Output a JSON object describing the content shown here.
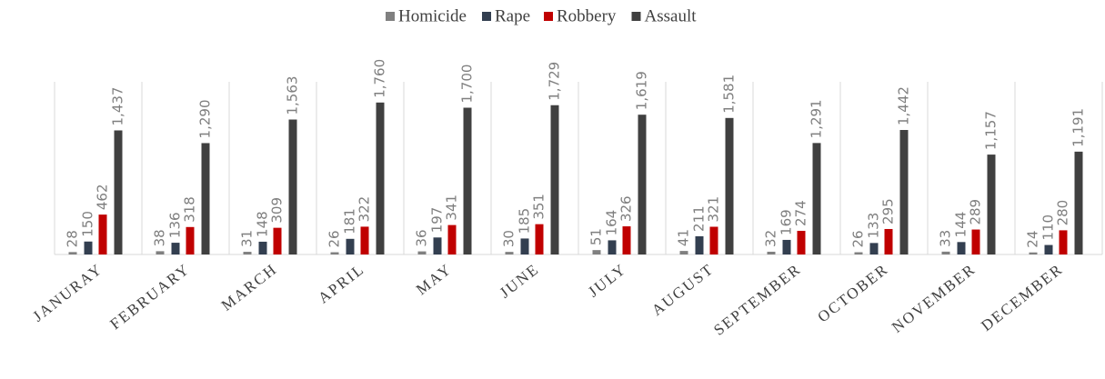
{
  "chart_data": {
    "type": "bar",
    "categories": [
      "JANURAY",
      "FEBRUARY",
      "MARCH",
      "APRIL",
      "MAY",
      "JUNE",
      "JULY",
      "AUGUST",
      "SEPTEMBER",
      "OCTOBER",
      "NOVEMBER",
      "DECEMBER"
    ],
    "series": [
      {
        "name": "Homicide",
        "color": "#808080",
        "values": [
          28,
          38,
          31,
          26,
          36,
          30,
          51,
          41,
          32,
          26,
          33,
          24
        ]
      },
      {
        "name": "Rape",
        "color": "#333f50",
        "values": [
          150,
          136,
          148,
          181,
          197,
          185,
          164,
          211,
          169,
          133,
          144,
          110
        ]
      },
      {
        "name": "Robbery",
        "color": "#c00000",
        "values": [
          462,
          318,
          309,
          322,
          341,
          351,
          326,
          321,
          274,
          295,
          289,
          280
        ]
      },
      {
        "name": "Assault",
        "color": "#404040",
        "values": [
          1437,
          1290,
          1563,
          1760,
          1700,
          1729,
          1619,
          1581,
          1291,
          1442,
          1157,
          1191
        ],
        "value_labels": [
          "1,437",
          "1,290",
          "1,563",
          "1,760",
          "1,700",
          "1,729",
          "1,619",
          "1,581",
          "1,291",
          "1,442",
          "1,157",
          "1,191"
        ]
      }
    ],
    "ylim": [
      0,
      2000
    ],
    "legend": "top"
  }
}
